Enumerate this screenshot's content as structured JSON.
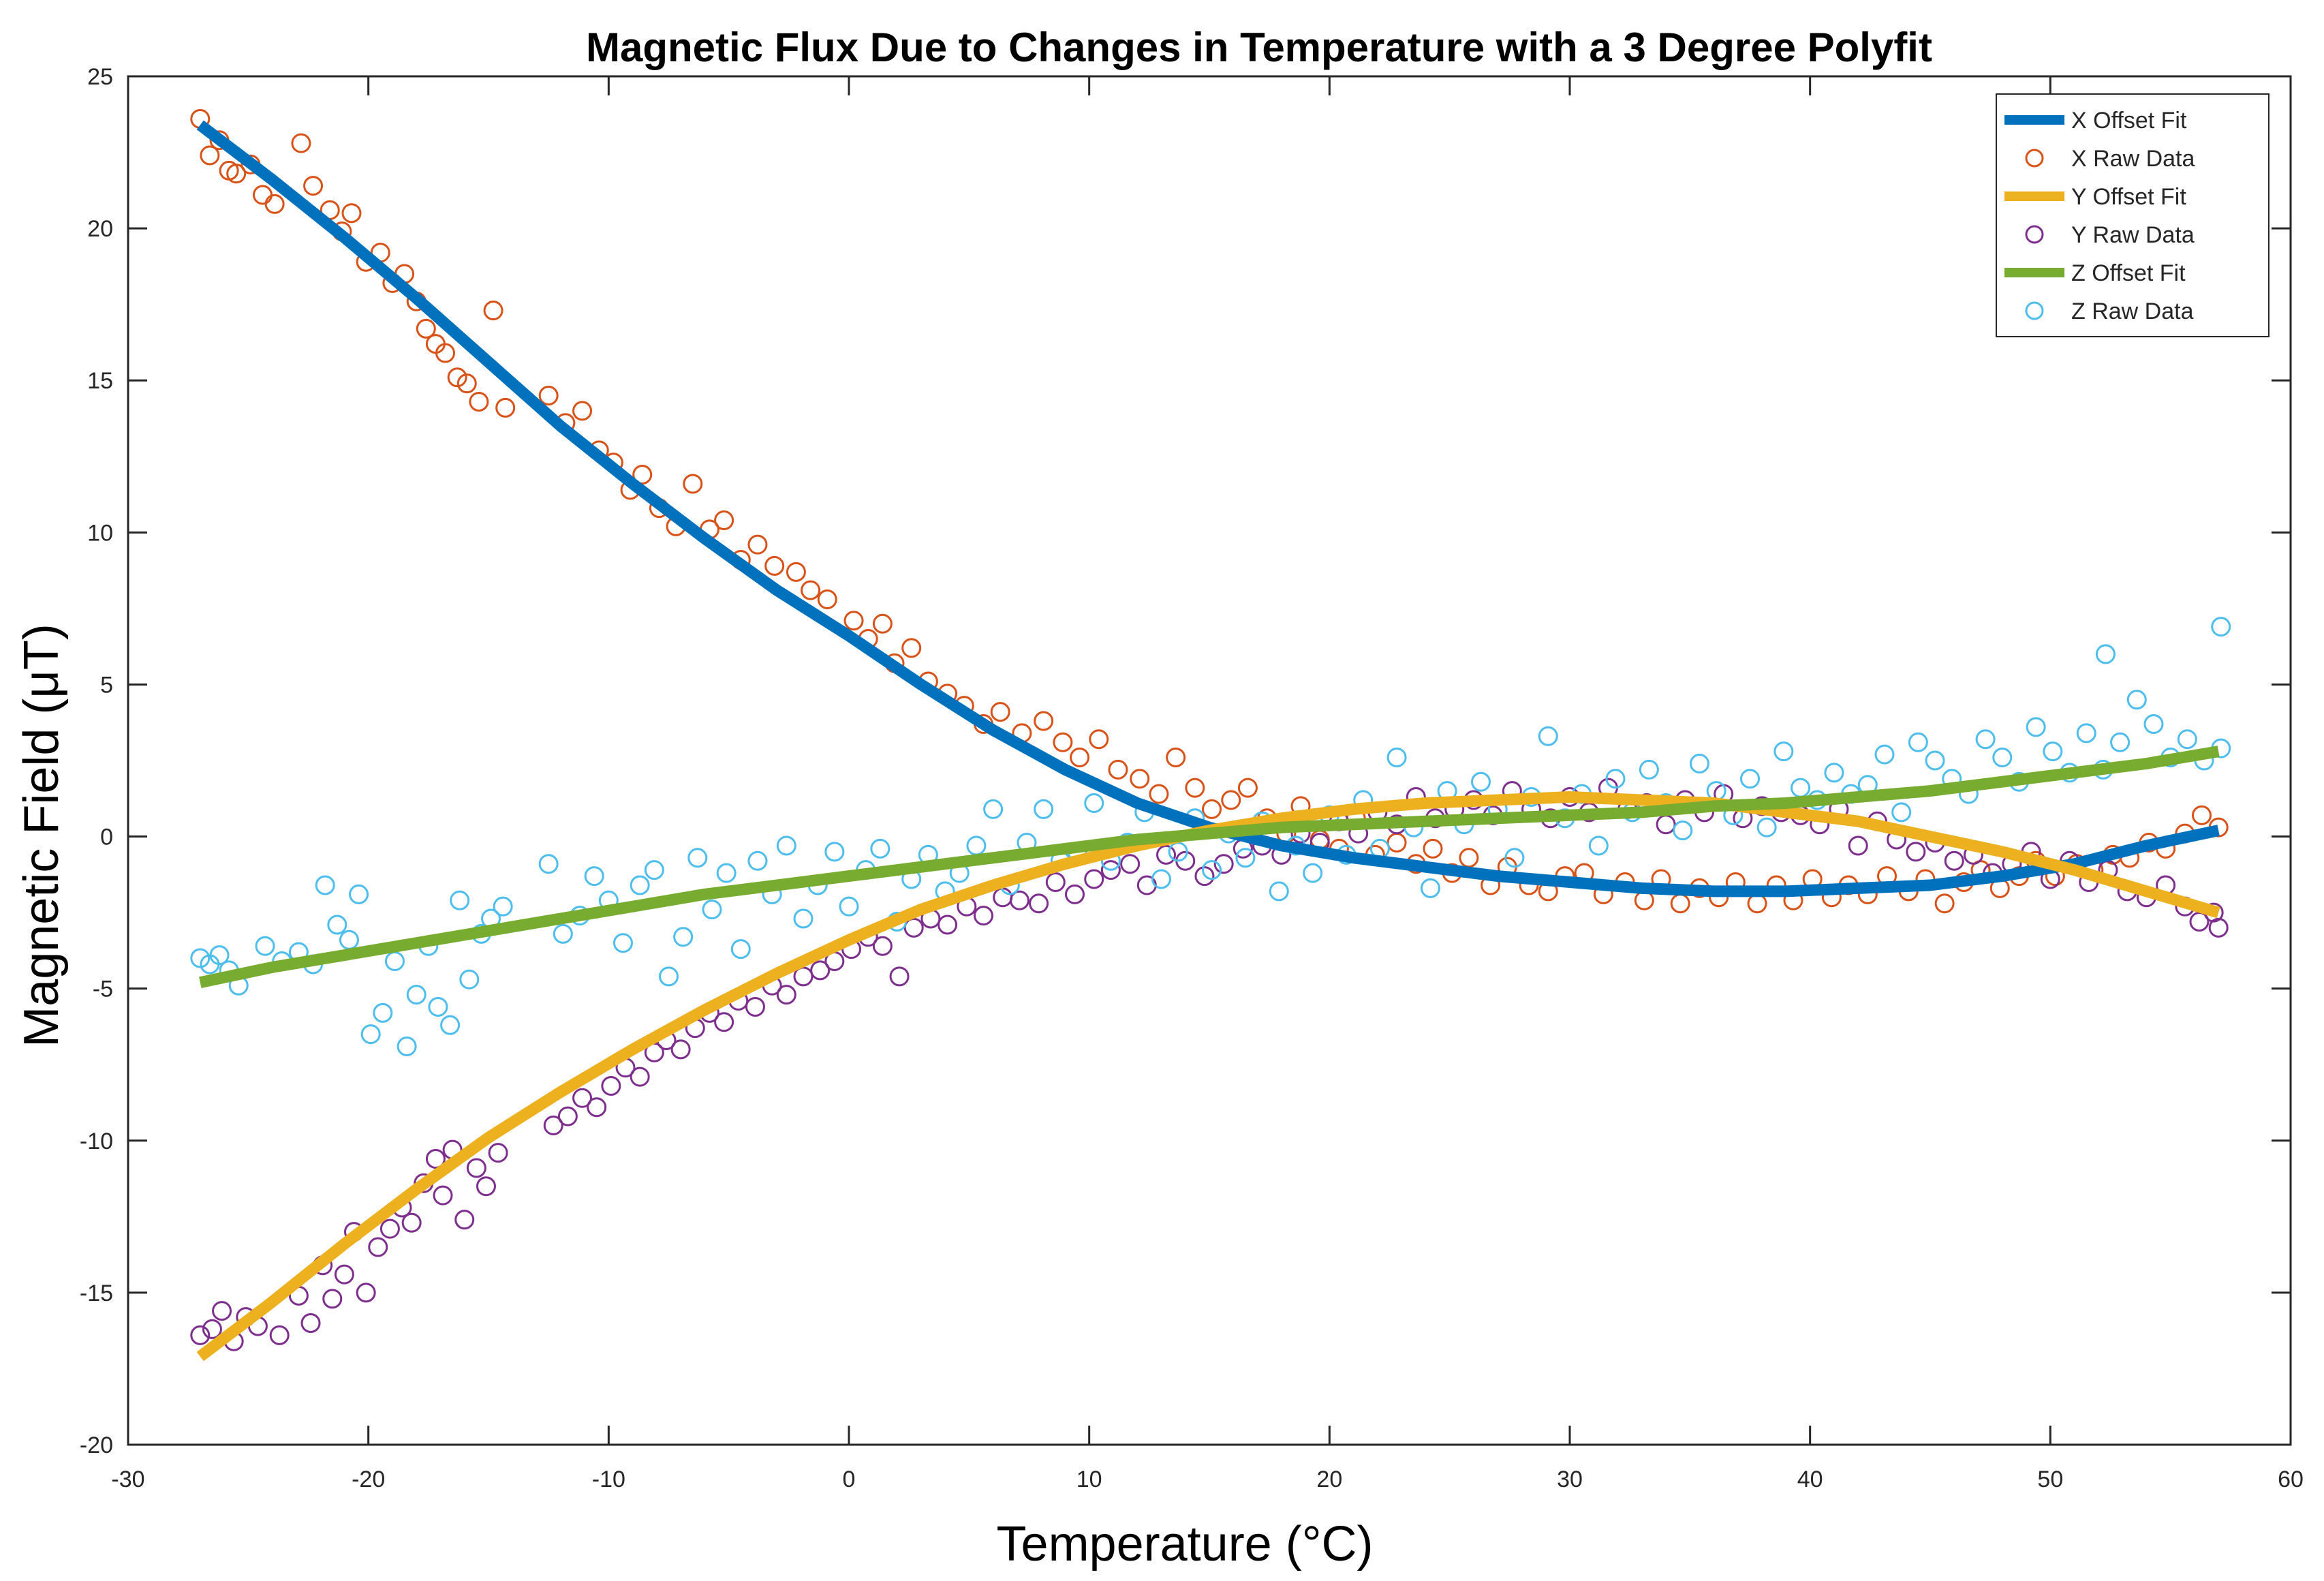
{
  "chart_data": {
    "type": "scatter",
    "title": "Magnetic Flux Due to Changes in Temperature with a 3 Degree Polyfit",
    "xlabel": "Temperature (°C)",
    "ylabel": "Magnetic Field (μT)",
    "xlim": [
      -30,
      60
    ],
    "ylim": [
      -20,
      25
    ],
    "xticks": [
      -30,
      -20,
      -10,
      0,
      10,
      20,
      30,
      40,
      50,
      60
    ],
    "yticks": [
      -20,
      -15,
      -10,
      -5,
      0,
      5,
      10,
      15,
      20,
      25
    ],
    "xtick_labels": [
      "-30",
      "-20",
      "-10",
      "0",
      "10",
      "20",
      "30",
      "40",
      "50",
      "60"
    ],
    "ytick_labels": [
      "-20",
      "-15",
      "-10",
      "-5",
      "0",
      "5",
      "10",
      "15",
      "20",
      "25"
    ],
    "grid": false,
    "legend_position": "top-right",
    "fit_x_samples": [
      -27,
      -24,
      -21,
      -18,
      -15,
      -12,
      -9,
      -6,
      -3,
      0,
      3,
      6,
      9,
      12,
      15,
      18,
      21,
      24,
      27,
      30,
      33,
      36,
      39,
      42,
      45,
      48,
      51,
      54,
      57
    ],
    "series": [
      {
        "name": "X Offset Fit",
        "kind": "line",
        "color": "#0072BD",
        "y": [
          23.4,
          21.6,
          19.7,
          17.7,
          15.6,
          13.5,
          11.6,
          9.8,
          8.1,
          6.6,
          5.0,
          3.5,
          2.2,
          1.1,
          0.3,
          -0.3,
          -0.7,
          -1.0,
          -1.3,
          -1.5,
          -1.7,
          -1.8,
          -1.8,
          -1.7,
          -1.6,
          -1.3,
          -0.9,
          -0.3,
          0.2
        ]
      },
      {
        "name": "X Raw Data",
        "kind": "markers",
        "color": "#D95319",
        "x": [
          -27,
          -26.6,
          -26.2,
          -25.8,
          -25.5,
          -24.9,
          -24.4,
          -23.9,
          -22.8,
          -22.3,
          -21.6,
          -21.1,
          -20.7,
          -20.1,
          -19.5,
          -19,
          -18.5,
          -18,
          -17.6,
          -17.2,
          -16.8,
          -16.3,
          -15.9,
          -15.4,
          -14.8,
          -14.3,
          -12.5,
          -11.8,
          -11.1,
          -10.4,
          -9.8,
          -9.1,
          -8.6,
          -7.9,
          -7.2,
          -6.5,
          -5.8,
          -5.2,
          -4.5,
          -3.8,
          -3.1,
          -2.2,
          -1.6,
          -0.9,
          0.2,
          0.8,
          1.4,
          1.9,
          2.6,
          3.3,
          4.1,
          4.8,
          5.6,
          6.3,
          7.2,
          8.1,
          8.9,
          9.6,
          10.4,
          11.2,
          12.1,
          12.9,
          13.6,
          14.4,
          15.1,
          15.9,
          16.6,
          17.4,
          18.2,
          18.8,
          19.6,
          20.4,
          21.1,
          21.9,
          22.8,
          23.6,
          24.3,
          25.1,
          25.8,
          26.7,
          27.4,
          28.3,
          29.1,
          29.8,
          30.6,
          31.4,
          32.3,
          33.1,
          33.8,
          34.6,
          35.4,
          36.2,
          36.9,
          37.8,
          38.6,
          39.3,
          40.1,
          40.9,
          41.6,
          42.4,
          43.2,
          44.1,
          44.8,
          45.6,
          46.4,
          47.1,
          47.9,
          48.7,
          49.4,
          50.2,
          51.1,
          51.8,
          52.6,
          53.3,
          54.1,
          54.8,
          55.6,
          56.3,
          57
        ],
        "y": [
          23.6,
          22.4,
          22.9,
          21.9,
          21.8,
          22.1,
          21.1,
          20.8,
          22.8,
          21.4,
          20.6,
          19.9,
          20.5,
          18.9,
          19.2,
          18.2,
          18.5,
          17.6,
          16.7,
          16.2,
          15.9,
          15.1,
          14.9,
          14.3,
          17.3,
          14.1,
          14.5,
          13.6,
          14,
          12.7,
          12.3,
          11.4,
          11.9,
          10.8,
          10.2,
          11.6,
          10.1,
          10.4,
          9.1,
          9.6,
          8.9,
          8.7,
          8.1,
          7.8,
          7.1,
          6.5,
          7,
          5.7,
          6.2,
          5.1,
          4.7,
          4.3,
          3.7,
          4.1,
          3.4,
          3.8,
          3.1,
          2.6,
          3.2,
          2.2,
          1.9,
          1.4,
          2.6,
          1.6,
          0.9,
          1.2,
          1.6,
          0.6,
          0.1,
          1,
          -0.1,
          -0.4,
          0.6,
          -0.6,
          -0.2,
          -0.9,
          -0.4,
          -1.2,
          -0.7,
          -1.6,
          -1,
          -1.6,
          -1.8,
          -1.3,
          -1.2,
          -1.9,
          -1.5,
          -2.1,
          -1.4,
          -2.2,
          -1.7,
          -2,
          -1.5,
          -2.2,
          -1.6,
          -2.1,
          -1.4,
          -2,
          -1.6,
          -1.9,
          -1.3,
          -1.8,
          -1.4,
          -2.2,
          -1.5,
          -1.1,
          -1.7,
          -1.3,
          -0.8,
          -1.3,
          -0.9,
          -1.1,
          -0.6,
          -0.7,
          -0.2,
          -0.4,
          0.1,
          0.7,
          0.3
        ]
      },
      {
        "name": "Y Offset Fit",
        "kind": "line",
        "color": "#EDB120",
        "y": [
          -17.1,
          -15.3,
          -13.4,
          -11.6,
          -9.9,
          -8.4,
          -7.0,
          -5.7,
          -4.5,
          -3.4,
          -2.4,
          -1.6,
          -0.9,
          -0.3,
          0.2,
          0.6,
          0.9,
          1.1,
          1.2,
          1.3,
          1.2,
          1.1,
          0.8,
          0.5,
          0.0,
          -0.5,
          -1.1,
          -1.8,
          -2.5
        ]
      },
      {
        "name": "Y Raw Data",
        "kind": "markers",
        "color": "#7E2F8E",
        "x": [
          -27,
          -26.5,
          -26.1,
          -25.6,
          -25.1,
          -24.6,
          -23.7,
          -22.9,
          -22.4,
          -21.9,
          -21.5,
          -21,
          -20.6,
          -20.1,
          -19.6,
          -19.1,
          -18.6,
          -18.2,
          -17.7,
          -17.2,
          -16.9,
          -16.5,
          -16,
          -15.5,
          -15.1,
          -14.6,
          -12.3,
          -11.7,
          -11.1,
          -10.5,
          -9.9,
          -9.3,
          -8.7,
          -8.1,
          -7.6,
          -7,
          -6.4,
          -5.8,
          -5.2,
          -4.6,
          -3.9,
          -3.2,
          -2.6,
          -1.9,
          -1.2,
          -0.6,
          0.1,
          0.8,
          1.4,
          2.1,
          2.7,
          3.4,
          4.1,
          4.9,
          5.6,
          6.4,
          7.1,
          7.9,
          8.6,
          9.4,
          10.2,
          10.9,
          11.7,
          12.4,
          13.2,
          14,
          14.8,
          15.6,
          16.4,
          17.2,
          18,
          18.8,
          19.6,
          20.4,
          21.2,
          22,
          22.8,
          23.6,
          24.4,
          25.2,
          26,
          26.8,
          27.6,
          28.4,
          29.2,
          30,
          30.8,
          31.6,
          32.4,
          33.2,
          34,
          34.8,
          35.6,
          36.4,
          37.2,
          38,
          38.8,
          39.6,
          40.4,
          41.2,
          42,
          42.8,
          43.6,
          44.4,
          45.2,
          46,
          46.8,
          47.6,
          48.4,
          49.2,
          50,
          50.8,
          51.6,
          52.4,
          53.2,
          54,
          54.8,
          55.6,
          56.2,
          56.8,
          57
        ],
        "y": [
          -16.4,
          -16.2,
          -15.6,
          -16.6,
          -15.8,
          -16.1,
          -16.4,
          -15.1,
          -16,
          -14.1,
          -15.2,
          -14.4,
          -13,
          -15,
          -13.5,
          -12.9,
          -12.2,
          -12.7,
          -11.4,
          -10.6,
          -11.8,
          -10.3,
          -12.6,
          -10.9,
          -11.5,
          -10.4,
          -9.5,
          -9.2,
          -8.6,
          -8.9,
          -8.2,
          -7.6,
          -7.9,
          -7.1,
          -6.7,
          -7,
          -6.3,
          -5.8,
          -6.1,
          -5.4,
          -5.6,
          -4.9,
          -5.2,
          -4.6,
          -4.4,
          -4.1,
          -3.7,
          -3.3,
          -3.6,
          -4.6,
          -3,
          -2.7,
          -2.9,
          -2.3,
          -2.6,
          -2,
          -2.1,
          -2.2,
          -1.5,
          -1.9,
          -1.4,
          -1.1,
          -0.9,
          -1.6,
          -0.6,
          -0.8,
          -1.3,
          -0.9,
          -0.4,
          -0.3,
          -0.6,
          0.1,
          -0.2,
          0.5,
          0.1,
          0.8,
          0.4,
          1.3,
          0.6,
          0.9,
          1.2,
          0.7,
          1.5,
          0.9,
          0.6,
          1.3,
          0.8,
          1.6,
          0.9,
          1.1,
          0.4,
          1.2,
          0.8,
          1.4,
          0.6,
          1,
          0.8,
          0.7,
          0.4,
          0.9,
          -0.3,
          0.5,
          -0.1,
          -0.5,
          -0.2,
          -0.8,
          -0.6,
          -1.2,
          -0.9,
          -0.5,
          -1.4,
          -0.8,
          -1.5,
          -1.1,
          -1.8,
          -2,
          -1.6,
          -2.3,
          -2.8,
          -2.5,
          -3
        ]
      },
      {
        "name": "Z Offset Fit",
        "kind": "line",
        "color": "#77AC30",
        "y": [
          -4.8,
          -4.3,
          -3.9,
          -3.5,
          -3.1,
          -2.7,
          -2.3,
          -1.9,
          -1.6,
          -1.3,
          -1.0,
          -0.7,
          -0.4,
          -0.1,
          0.1,
          0.3,
          0.4,
          0.5,
          0.6,
          0.7,
          0.8,
          1.0,
          1.1,
          1.3,
          1.5,
          1.8,
          2.1,
          2.4,
          2.8
        ]
      },
      {
        "name": "Z Raw Data",
        "kind": "markers",
        "color": "#4DBEEE",
        "x": [
          -27,
          -26.6,
          -26.2,
          -25.8,
          -25.4,
          -24.3,
          -23.6,
          -22.9,
          -22.3,
          -21.8,
          -21.3,
          -20.8,
          -20.4,
          -19.9,
          -19.4,
          -18.9,
          -18.4,
          -18,
          -17.5,
          -17.1,
          -16.6,
          -16.2,
          -15.8,
          -15.3,
          -14.9,
          -14.4,
          -12.5,
          -11.9,
          -11.2,
          -10.6,
          -10,
          -9.4,
          -8.7,
          -8.1,
          -7.5,
          -6.9,
          -6.3,
          -5.7,
          -5.1,
          -4.5,
          -3.8,
          -3.2,
          -2.6,
          -1.9,
          -1.3,
          -0.6,
          0,
          0.7,
          1.3,
          2,
          2.6,
          3.3,
          4,
          4.6,
          5.3,
          6,
          6.7,
          7.4,
          8.1,
          8.8,
          9.5,
          10.2,
          10.9,
          11.6,
          12.3,
          13,
          13.7,
          14.4,
          15.1,
          15.8,
          16.5,
          17.2,
          17.9,
          18.6,
          19.3,
          20,
          20.7,
          21.4,
          22.1,
          22.8,
          23.5,
          24.2,
          24.9,
          25.6,
          26.3,
          27,
          27.7,
          28.4,
          29.1,
          29.8,
          30.5,
          31.2,
          31.9,
          32.6,
          33.3,
          34,
          34.7,
          35.4,
          36.1,
          36.8,
          37.5,
          38.2,
          38.9,
          39.6,
          40.3,
          41,
          41.7,
          42.4,
          43.1,
          43.8,
          44.5,
          45.2,
          45.9,
          46.6,
          47.3,
          48,
          48.7,
          49.4,
          50.1,
          50.8,
          51.5,
          52.2,
          52.9,
          53.6,
          54.3,
          55,
          55.7,
          56.4,
          57.1,
          52.3,
          57.1
        ],
        "y": [
          -4,
          -4.2,
          -3.9,
          -4.4,
          -4.9,
          -3.6,
          -4.1,
          -3.8,
          -4.2,
          -1.6,
          -2.9,
          -3.4,
          -1.9,
          -6.5,
          -5.8,
          -4.1,
          -6.9,
          -5.2,
          -3.6,
          -5.6,
          -6.2,
          -2.1,
          -4.7,
          -3.2,
          -2.7,
          -2.3,
          -0.9,
          -3.2,
          -2.6,
          -1.3,
          -2.1,
          -3.5,
          -1.6,
          -1.1,
          -4.6,
          -3.3,
          -0.7,
          -2.4,
          -1.2,
          -3.7,
          -0.8,
          -1.9,
          -0.3,
          -2.7,
          -1.6,
          -0.5,
          -2.3,
          -1.1,
          -0.4,
          -2.8,
          -1.4,
          -0.6,
          -1.8,
          -1.2,
          -0.3,
          0.9,
          -1.6,
          -0.2,
          0.9,
          -0.8,
          -0.5,
          1.1,
          -0.8,
          -0.2,
          0.8,
          -1.4,
          -0.5,
          0.6,
          -1.1,
          0.1,
          -0.7,
          0.5,
          -1.8,
          -0.3,
          -1.2,
          0.7,
          -0.6,
          1.2,
          -0.4,
          2.6,
          0.3,
          -1.7,
          1.5,
          0.4,
          1.8,
          0.9,
          -0.7,
          1.3,
          3.3,
          0.6,
          1.4,
          -0.3,
          1.9,
          0.8,
          2.2,
          1.1,
          0.2,
          2.4,
          1.5,
          0.7,
          1.9,
          0.3,
          2.8,
          1.6,
          1.2,
          2.1,
          1.4,
          1.7,
          2.7,
          0.8,
          3.1,
          2.5,
          1.9,
          1.4,
          3.2,
          2.6,
          1.8,
          3.6,
          2.8,
          2.1,
          3.4,
          2.2,
          3.1,
          4.5,
          3.7,
          2.6,
          3.2,
          2.5,
          2.9,
          6,
          6.9
        ]
      }
    ]
  }
}
